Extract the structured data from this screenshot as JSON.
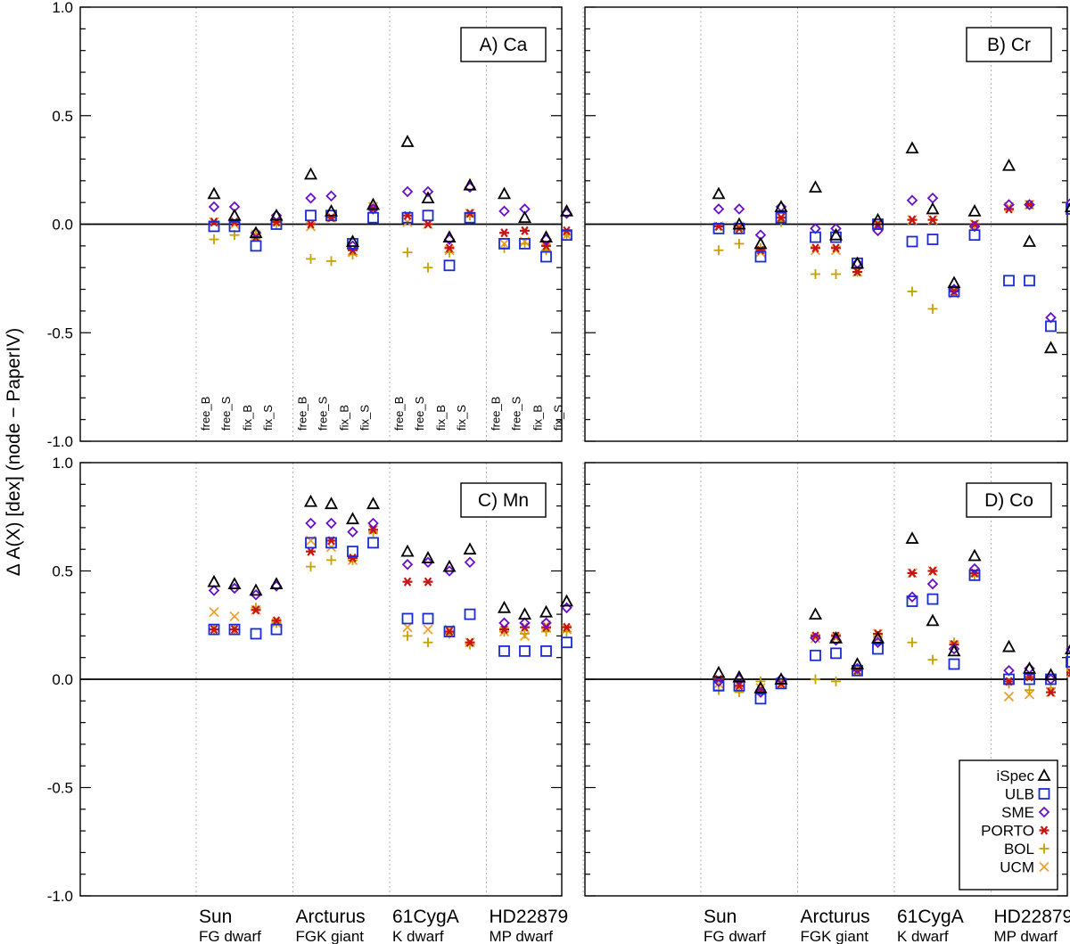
{
  "chart_data": [
    {
      "type": "scatter",
      "title": "A) Ca",
      "ylabel": "Δ A(X) [dex] (node − PaperIV)",
      "ylim": [
        -1.0,
        1.0
      ],
      "yticks": [
        "1.0",
        "0.5",
        "0.0",
        "-0.5",
        "-1.0"
      ],
      "categories": [
        "Sun",
        "Arcturus",
        "61CygA",
        "HD22879"
      ],
      "subcategories": [
        "FG dwarf",
        "FGK giant",
        "K dwarf",
        "MP dwarf"
      ],
      "configurations": [
        "free_B",
        "free_S",
        "fix_B",
        "fix_S"
      ],
      "show_config_labels": true,
      "show_legend": false,
      "series": [
        {
          "name": "iSpec",
          "values": [
            [
              0.14,
              0.04,
              -0.04,
              0.04
            ],
            [
              0.23,
              0.06,
              -0.08,
              0.09
            ],
            [
              0.38,
              0.12,
              -0.06,
              0.18
            ],
            [
              0.14,
              0.03,
              -0.06,
              0.06
            ]
          ]
        },
        {
          "name": "ULB",
          "values": [
            [
              -0.01,
              -0.01,
              -0.1,
              0.0
            ],
            [
              0.04,
              0.04,
              -0.09,
              0.03
            ],
            [
              0.03,
              0.04,
              -0.19,
              0.03
            ],
            [
              -0.09,
              -0.09,
              -0.15,
              -0.05
            ]
          ]
        },
        {
          "name": "SME",
          "values": [
            [
              0.08,
              0.08,
              -0.04,
              0.04
            ],
            [
              0.12,
              0.13,
              -0.1,
              0.07
            ],
            [
              0.15,
              0.15,
              -0.07,
              0.17
            ],
            [
              0.06,
              0.07,
              -0.07,
              0.05
            ]
          ]
        },
        {
          "name": "PORTO",
          "values": [
            [
              0.01,
              0.01,
              -0.06,
              0.01
            ],
            [
              0.0,
              0.03,
              -0.12,
              0.07
            ],
            [
              0.04,
              0.0,
              -0.11,
              0.05
            ],
            [
              -0.04,
              -0.03,
              -0.1,
              -0.03
            ]
          ]
        },
        {
          "name": "BOL",
          "values": [
            [
              -0.07,
              -0.05,
              -0.05,
              0.0
            ],
            [
              -0.16,
              -0.17,
              -0.14,
              0.08
            ],
            [
              -0.13,
              -0.2,
              -0.13,
              0.04
            ],
            [
              -0.11,
              -0.09,
              -0.12,
              -0.05
            ]
          ]
        },
        {
          "name": "UCM",
          "values": [
            [
              0.01,
              0.0,
              -0.05,
              0.01
            ],
            [
              -0.01,
              0.03,
              -0.13,
              0.08
            ],
            [
              0.01,
              0.0,
              -0.12,
              0.05
            ],
            [
              -0.09,
              -0.08,
              -0.11,
              -0.05
            ]
          ]
        }
      ]
    },
    {
      "type": "scatter",
      "title": "B) Cr",
      "ylim": [
        -1.0,
        1.0
      ],
      "categories": [
        "Sun",
        "Arcturus",
        "61CygA",
        "HD22879"
      ],
      "subcategories": [
        "FG dwarf",
        "FGK giant",
        "K dwarf",
        "MP dwarf"
      ],
      "show_config_labels": false,
      "show_legend": false,
      "series": [
        {
          "name": "iSpec",
          "values": [
            [
              0.14,
              0.0,
              -0.09,
              0.08
            ],
            [
              0.17,
              -0.05,
              -0.18,
              0.02
            ],
            [
              0.35,
              0.07,
              -0.27,
              0.06
            ],
            [
              0.27,
              -0.08,
              -0.57,
              0.08
            ]
          ]
        },
        {
          "name": "ULB",
          "values": [
            [
              -0.02,
              -0.02,
              -0.15,
              0.03
            ],
            [
              -0.06,
              -0.06,
              -0.18,
              0.0
            ],
            [
              -0.08,
              -0.07,
              -0.31,
              -0.05
            ],
            [
              -0.26,
              -0.26,
              -0.47,
              0.07
            ]
          ]
        },
        {
          "name": "SME",
          "values": [
            [
              0.07,
              0.07,
              -0.05,
              0.08
            ],
            [
              -0.02,
              -0.02,
              -0.18,
              -0.03
            ],
            [
              0.11,
              0.12,
              -0.3,
              -0.01
            ],
            [
              0.09,
              0.09,
              -0.43,
              0.1
            ]
          ]
        },
        {
          "name": "PORTO",
          "values": [
            [
              -0.01,
              -0.02,
              -0.12,
              0.03
            ],
            [
              -0.11,
              -0.11,
              -0.22,
              0.0
            ],
            [
              0.02,
              0.02,
              -0.31,
              0.0
            ],
            [
              0.07,
              0.09,
              null,
              null
            ]
          ]
        },
        {
          "name": "BOL",
          "values": [
            [
              -0.12,
              -0.09,
              -0.11,
              0.01
            ],
            [
              -0.23,
              -0.23,
              -0.22,
              0.0
            ],
            [
              -0.31,
              -0.39,
              -0.31,
              -0.01
            ],
            [
              null,
              null,
              null,
              null
            ]
          ]
        },
        {
          "name": "UCM",
          "values": [
            [
              -0.01,
              -0.01,
              -0.13,
              0.03
            ],
            [
              -0.12,
              -0.12,
              -0.22,
              0.0
            ],
            [
              0.02,
              0.02,
              -0.32,
              0.0
            ],
            [
              0.08,
              0.09,
              null,
              null
            ]
          ]
        }
      ]
    },
    {
      "type": "scatter",
      "title": "C) Mn",
      "ylim": [
        -1.0,
        1.0
      ],
      "yticks": [
        "1.0",
        "0.5",
        "0.0",
        "-0.5",
        "-1.0"
      ],
      "categories": [
        "Sun",
        "Arcturus",
        "61CygA",
        "HD22879"
      ],
      "subcategories": [
        "FG dwarf",
        "FGK giant",
        "K dwarf",
        "MP dwarf"
      ],
      "show_config_labels": false,
      "show_legend": false,
      "series": [
        {
          "name": "iSpec",
          "values": [
            [
              0.45,
              0.44,
              0.41,
              0.44
            ],
            [
              0.82,
              0.81,
              0.74,
              0.81
            ],
            [
              0.59,
              0.56,
              0.52,
              0.6
            ],
            [
              0.33,
              0.3,
              0.31,
              0.36
            ]
          ]
        },
        {
          "name": "ULB",
          "values": [
            [
              0.23,
              0.23,
              0.21,
              0.23
            ],
            [
              0.63,
              0.63,
              0.59,
              0.63
            ],
            [
              0.28,
              0.28,
              0.22,
              0.3
            ],
            [
              0.13,
              0.13,
              0.13,
              0.17
            ]
          ]
        },
        {
          "name": "SME",
          "values": [
            [
              0.41,
              0.42,
              0.39,
              0.43
            ],
            [
              0.72,
              0.72,
              0.68,
              0.72
            ],
            [
              0.53,
              0.54,
              0.5,
              0.54
            ],
            [
              0.26,
              0.26,
              0.26,
              0.33
            ]
          ]
        },
        {
          "name": "PORTO",
          "values": [
            [
              0.23,
              0.23,
              0.32,
              0.27
            ],
            [
              0.59,
              0.64,
              0.56,
              0.69
            ],
            [
              0.45,
              0.45,
              0.22,
              0.17
            ],
            [
              0.23,
              0.24,
              0.24,
              0.24
            ]
          ]
        },
        {
          "name": "BOL",
          "values": [
            [
              0.23,
              0.23,
              0.33,
              0.26
            ],
            [
              0.52,
              0.55,
              0.55,
              0.68
            ],
            [
              0.2,
              0.17,
              0.21,
              0.16
            ],
            [
              0.22,
              0.21,
              0.22,
              0.22
            ]
          ]
        },
        {
          "name": "UCM",
          "values": [
            [
              0.31,
              0.29,
              0.32,
              0.26
            ],
            [
              0.64,
              0.61,
              0.55,
              0.69
            ],
            [
              0.24,
              0.23,
              0.23,
              0.17
            ],
            [
              0.22,
              0.2,
              0.25,
              0.23
            ]
          ]
        }
      ]
    },
    {
      "type": "scatter",
      "title": "D) Co",
      "ylim": [
        -1.0,
        1.0
      ],
      "categories": [
        "Sun",
        "Arcturus",
        "61CygA",
        "HD22879"
      ],
      "subcategories": [
        "FG dwarf",
        "FGK giant",
        "K dwarf",
        "MP dwarf"
      ],
      "show_config_labels": false,
      "show_legend": true,
      "series": [
        {
          "name": "iSpec",
          "values": [
            [
              0.03,
              0.01,
              -0.04,
              0.0
            ],
            [
              0.3,
              0.19,
              0.07,
              0.19
            ],
            [
              0.65,
              0.27,
              0.13,
              0.57
            ],
            [
              0.15,
              0.05,
              0.02,
              0.14
            ]
          ]
        },
        {
          "name": "ULB",
          "values": [
            [
              -0.03,
              -0.03,
              -0.09,
              -0.02
            ],
            [
              0.11,
              0.12,
              0.04,
              0.14
            ],
            [
              0.36,
              0.37,
              0.07,
              0.48
            ],
            [
              0.0,
              0.0,
              0.0,
              0.08
            ]
          ]
        },
        {
          "name": "SME",
          "values": [
            [
              -0.01,
              0.0,
              -0.06,
              0.0
            ],
            [
              0.19,
              0.18,
              0.05,
              0.17
            ],
            [
              0.38,
              0.44,
              0.14,
              0.51
            ],
            [
              0.04,
              0.05,
              0.0,
              0.14
            ]
          ]
        },
        {
          "name": "PORTO",
          "values": [
            [
              0.0,
              -0.03,
              -0.05,
              -0.02
            ],
            [
              0.2,
              0.2,
              0.04,
              0.21
            ],
            [
              0.49,
              0.5,
              0.16,
              0.49
            ],
            [
              -0.01,
              0.01,
              -0.06,
              0.03
            ]
          ]
        },
        {
          "name": "BOL",
          "values": [
            [
              -0.05,
              -0.06,
              -0.01,
              -0.02
            ],
            [
              0.0,
              -0.01,
              0.04,
              0.2
            ],
            [
              0.17,
              0.09,
              0.17,
              0.48
            ],
            [
              -0.02,
              -0.05,
              -0.04,
              0.04
            ]
          ]
        },
        {
          "name": "UCM",
          "values": [
            [
              -0.02,
              -0.02,
              -0.04,
              -0.02
            ],
            [
              0.19,
              0.19,
              0.04,
              0.21
            ],
            [
              0.49,
              0.5,
              0.16,
              0.49
            ],
            [
              -0.08,
              -0.07,
              -0.06,
              0.03
            ]
          ]
        }
      ]
    }
  ],
  "colors": {
    "iSpec": "#000000",
    "ULB": "#1a2bd6",
    "SME": "#6a0fc9",
    "PORTO": "#c81414",
    "BOL": "#c8a000",
    "UCM": "#f0a030",
    "axis": "#000000",
    "grid": "#b0b0b0"
  },
  "markers": {
    "iSpec": "triangle",
    "ULB": "square",
    "SME": "diamond",
    "PORTO": "asterisk",
    "BOL": "plus",
    "UCM": "cross"
  }
}
